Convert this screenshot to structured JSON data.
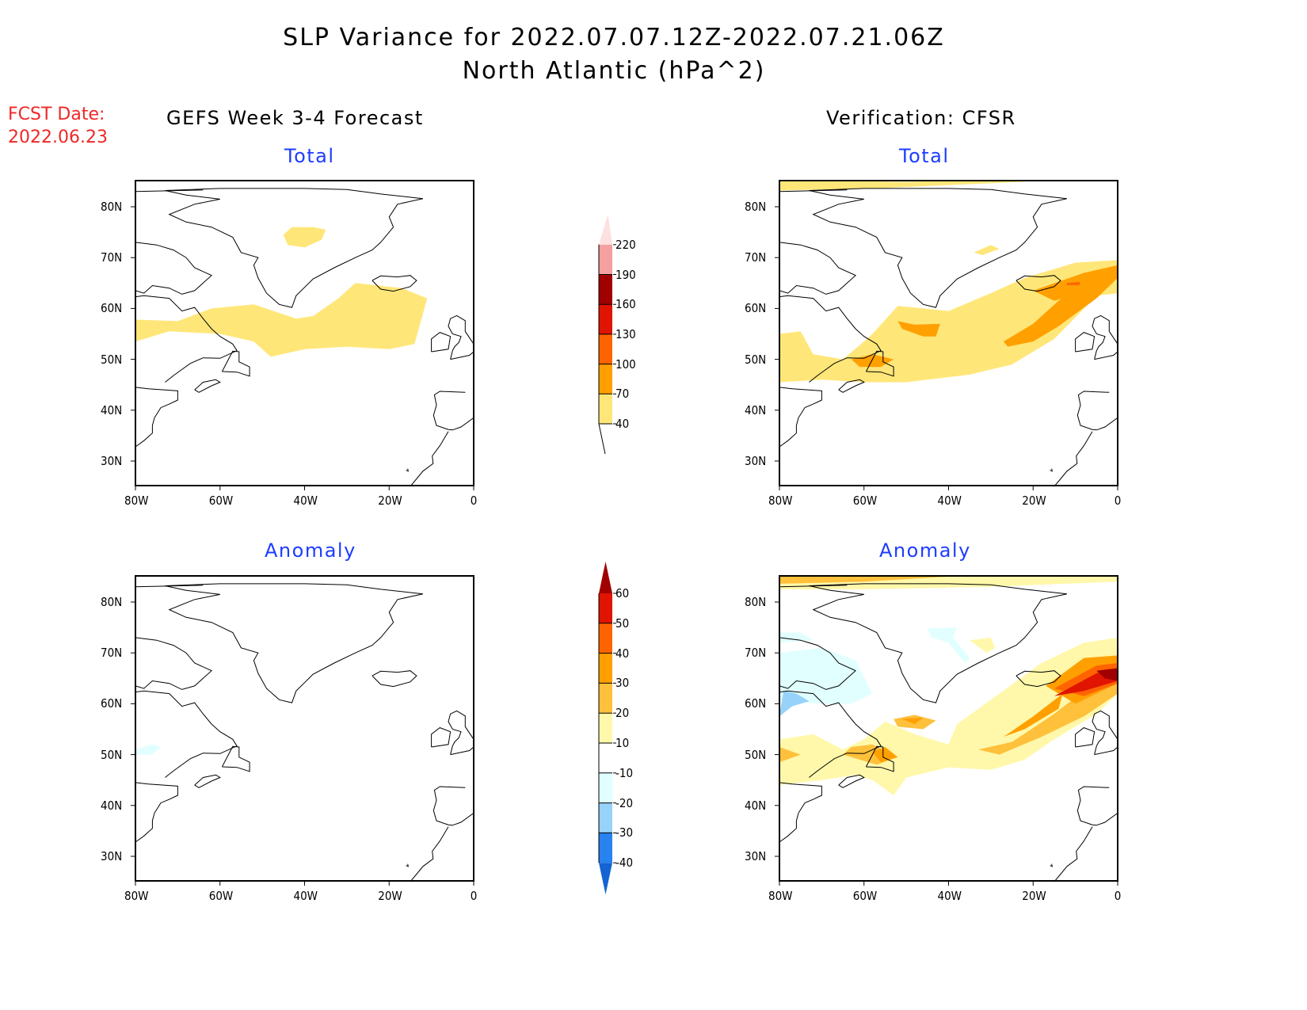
{
  "header": {
    "title_line1": "SLP Variance for 2022.07.07.12Z-2022.07.21.06Z",
    "title_line2": "North Atlantic (hPa^2)",
    "fcst_label": "FCST Date:",
    "fcst_date": "2022.06.23"
  },
  "columns": {
    "left": "GEFS Week 3-4 Forecast",
    "right": "Verification: CFSR"
  },
  "chart_data": [
    {
      "type": "heatmap",
      "panel": "forecast-total",
      "title": "Total",
      "xlabel": "",
      "ylabel": "",
      "xticks": [
        "80W",
        "60W",
        "40W",
        "20W",
        "0"
      ],
      "yticks": [
        "80N",
        "70N",
        "60N",
        "50N",
        "40N",
        "30N"
      ],
      "xlim": [
        -80,
        0
      ],
      "ylim": [
        25,
        85
      ],
      "regions": [
        {
          "level": "40-70",
          "desc": "band 52-62N from 80W to 12W; patch near 73N 40W"
        }
      ]
    },
    {
      "type": "heatmap",
      "panel": "verification-total",
      "title": "Total",
      "xticks": [
        "80W",
        "60W",
        "40W",
        "20W",
        "0"
      ],
      "yticks": [
        "80N",
        "70N",
        "60N",
        "50N",
        "40N",
        "30N"
      ],
      "xlim": [
        -80,
        0
      ],
      "ylim": [
        25,
        85
      ],
      "regions": [
        {
          "level": "40-70",
          "desc": "broad band 45-68N from 80W to 0; strip near 84N; patch near 72N 35W"
        },
        {
          "level": "70-100",
          "desc": "maxima near 62N 15W, 57N 45W, 50N 55W"
        },
        {
          "level": "100-130",
          "desc": "small spot near 65N 10W"
        }
      ]
    },
    {
      "type": "heatmap",
      "panel": "forecast-anomaly",
      "title": "Anomaly",
      "xticks": [
        "80W",
        "60W",
        "40W",
        "20W",
        "0"
      ],
      "yticks": [
        "80N",
        "70N",
        "60N",
        "50N",
        "40N",
        "30N"
      ],
      "xlim": [
        -80,
        0
      ],
      "ylim": [
        25,
        85
      ],
      "regions": [
        {
          "level": "-20--10",
          "desc": "small patch near 52N 78W"
        }
      ]
    },
    {
      "type": "heatmap",
      "panel": "verification-anomaly",
      "title": "Anomaly",
      "xticks": [
        "80W",
        "60W",
        "40W",
        "20W",
        "0"
      ],
      "yticks": [
        "80N",
        "70N",
        "60N",
        "50N",
        "40N",
        "30N"
      ],
      "xlim": [
        -80,
        0
      ],
      "ylim": [
        25,
        85
      ],
      "regions": [
        {
          "level": "50-60+",
          "desc": "max near 64N 10W"
        },
        {
          "level": "20-40",
          "desc": "maxima near 57N 48W, 50N 55W, 50N 78W"
        },
        {
          "level": "-20--10",
          "desc": "Labrador/Hudson region near 62N 78W"
        },
        {
          "level": "-10--20",
          "desc": "light blue patches near 60-70N 60-75W"
        }
      ]
    }
  ],
  "colorbars": {
    "total": {
      "levels": [
        "40",
        "70",
        "100",
        "130",
        "160",
        "190",
        "220"
      ],
      "colors": [
        "#ffe678",
        "#ffa000",
        "#ff6400",
        "#e01400",
        "#a00000",
        "#f4a0a0",
        "#fde0e0"
      ],
      "below_color": "#ffffff"
    },
    "anomaly": {
      "levels": [
        "-40",
        "-30",
        "-20",
        "-10",
        "10",
        "20",
        "30",
        "40",
        "50",
        "60"
      ],
      "colors": [
        "#2882f0",
        "#96d2fa",
        "#e1ffff",
        "#ffffff",
        "#fff8aa",
        "#ffc03c",
        "#ffa000",
        "#ff6400",
        "#e01400"
      ],
      "below_color": "#1464d2",
      "above_color": "#a00000"
    }
  },
  "panels": {
    "tl_sub": "Total",
    "tr_sub": "Total",
    "bl_sub": "Anomaly",
    "br_sub": "Anomaly"
  },
  "axes": {
    "xticks": [
      "80W",
      "60W",
      "40W",
      "20W",
      "0"
    ],
    "yticks": [
      "80N",
      "70N",
      "60N",
      "50N",
      "40N",
      "30N"
    ]
  }
}
